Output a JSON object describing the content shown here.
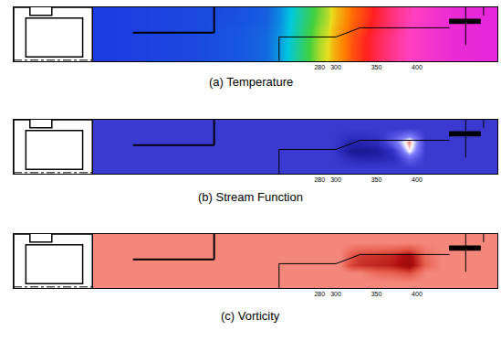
{
  "chart_data": [
    {
      "type": "heatmap",
      "title": "(a) Temperature",
      "x": [
        0,
        50,
        100,
        150,
        200,
        230,
        250,
        270,
        290,
        300,
        310,
        320,
        340,
        360,
        380,
        400,
        420,
        440,
        470,
        499
      ],
      "y": [
        0,
        0.2,
        0.35,
        0.5,
        0.7,
        1
      ],
      "z": [
        [
          0.02,
          0.03,
          0.04,
          0.06,
          0.1,
          0.25,
          0.4,
          0.55,
          0.65,
          0.7,
          0.74,
          0.78,
          0.83,
          0.87,
          0.9,
          0.93,
          0.95,
          0.97,
          0.98
        ],
        [
          0.02,
          0.03,
          0.04,
          0.06,
          0.1,
          0.25,
          0.4,
          0.55,
          0.65,
          0.7,
          0.74,
          0.78,
          0.83,
          0.87,
          0.9,
          0.93,
          0.95,
          0.97,
          0.98
        ],
        [
          0.02,
          0.03,
          0.04,
          0.06,
          0.1,
          0.24,
          0.39,
          0.54,
          0.64,
          0.7,
          0.74,
          0.78,
          0.83,
          0.87,
          0.9,
          0.93,
          0.95,
          0.97,
          0.98
        ],
        [
          0.02,
          0.03,
          0.04,
          0.06,
          0.09,
          0.23,
          0.38,
          0.53,
          0.63,
          0.69,
          0.73,
          0.77,
          0.82,
          0.86,
          0.9,
          0.93,
          0.95,
          0.97,
          0.98
        ],
        [
          0.02,
          0.03,
          0.04,
          0.05,
          0.08,
          0.22,
          0.36,
          0.5,
          0.61,
          0.67,
          0.72,
          0.76,
          0.81,
          0.86,
          0.89,
          0.92,
          0.95,
          0.97,
          0.98
        ]
      ],
      "zlim": [
        0,
        1
      ],
      "xlim": [
        -97,
        499
      ],
      "ylim": [
        0,
        1
      ],
      "xticks": [
        280,
        300,
        350,
        400
      ],
      "tick_labels": "x"
    },
    {
      "type": "heatmap",
      "title": "(b) Stream Function",
      "x": [
        0,
        50,
        100,
        150,
        200,
        230,
        250,
        270,
        290,
        300,
        310,
        320,
        340,
        360,
        380,
        400,
        420,
        440,
        470,
        499
      ],
      "y": [
        0,
        0.2,
        0.35,
        0.5,
        0.7,
        1
      ],
      "z": [
        [
          0.45,
          0.45,
          0.45,
          0.45,
          0.45,
          0.45,
          0.45,
          0.45,
          0.45,
          0.45,
          0.45,
          0.45,
          0.45,
          0.45,
          0.45,
          0.45,
          0.45,
          0.45,
          0.45
        ],
        [
          0.45,
          0.45,
          0.45,
          0.45,
          0.45,
          0.45,
          0.45,
          0.45,
          0.45,
          0.4,
          0.35,
          0.3,
          0.3,
          0.35,
          0.6,
          0.45,
          0.45,
          0.45,
          0.45
        ],
        [
          0.45,
          0.45,
          0.45,
          0.45,
          0.45,
          0.45,
          0.45,
          0.45,
          0.45,
          0.35,
          0.2,
          0.15,
          0.2,
          0.4,
          0.85,
          0.45,
          0.45,
          0.45,
          0.45
        ],
        [
          0.45,
          0.45,
          0.45,
          0.45,
          0.45,
          0.45,
          0.45,
          0.45,
          0.45,
          0.4,
          0.3,
          0.3,
          0.35,
          0.6,
          0.95,
          0.45,
          0.45,
          0.45,
          0.45
        ],
        [
          0.45,
          0.45,
          0.45,
          0.45,
          0.45,
          0.45,
          0.45,
          0.45,
          0.45,
          0.45,
          0.45,
          0.45,
          0.45,
          0.45,
          0.45,
          0.45,
          0.45,
          0.45,
          0.45
        ]
      ],
      "zlim": [
        0,
        1
      ],
      "xlim": [
        -97,
        499
      ],
      "ylim": [
        0,
        1
      ],
      "xticks": [
        280,
        300,
        350,
        400
      ],
      "tick_labels": "x"
    },
    {
      "type": "heatmap",
      "title": "(c) Vorticity",
      "x": [
        0,
        50,
        100,
        150,
        200,
        230,
        250,
        270,
        290,
        300,
        310,
        320,
        340,
        360,
        380,
        400,
        420,
        440,
        470,
        499
      ],
      "y": [
        0,
        0.2,
        0.35,
        0.5,
        0.7,
        1
      ],
      "z": [
        [
          1,
          1,
          1,
          1,
          1,
          1,
          1,
          1,
          1,
          1,
          1,
          1,
          1,
          1,
          1,
          1,
          1,
          1,
          1
        ],
        [
          1,
          1,
          1,
          1,
          1,
          1,
          1,
          1,
          1,
          1,
          1,
          1,
          0.85,
          0.8,
          0.7,
          1,
          1,
          1,
          1
        ],
        [
          1,
          1,
          1,
          1,
          1,
          1,
          1,
          1,
          1,
          1,
          0.7,
          0.55,
          0.5,
          0.45,
          0.25,
          0.8,
          1,
          1,
          1
        ],
        [
          1,
          1,
          1,
          1,
          1,
          1,
          1,
          1,
          1,
          1,
          0.8,
          0.6,
          0.55,
          0.5,
          0.3,
          0.85,
          1,
          1,
          1
        ],
        [
          1,
          1,
          1,
          1,
          1,
          1,
          1,
          1,
          1,
          1,
          1,
          1,
          1,
          1,
          1,
          1,
          1,
          1,
          1
        ]
      ],
      "zlim": [
        0,
        1
      ],
      "xlim": [
        -97,
        499
      ],
      "ylim": [
        0,
        1
      ],
      "xticks": [
        280,
        300,
        350,
        400
      ],
      "tick_labels": "x"
    }
  ]
}
